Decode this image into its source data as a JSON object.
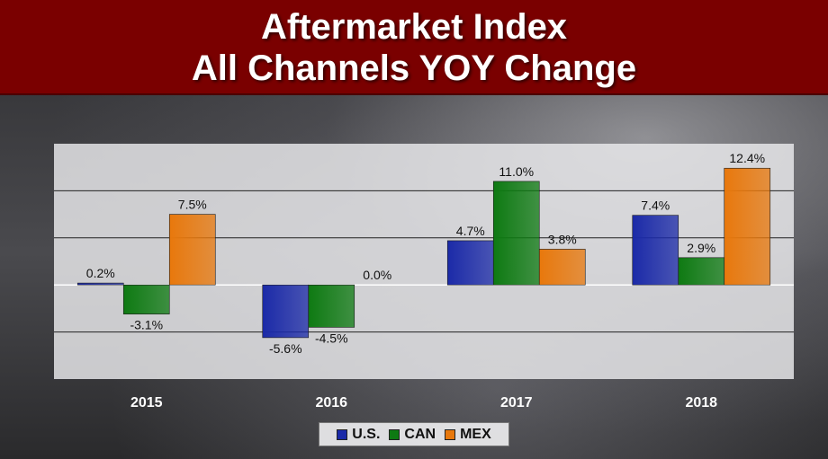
{
  "title": {
    "line1": "Aftermarket Index",
    "line2": "All Channels YOY Change"
  },
  "chart_data": {
    "type": "bar",
    "categories": [
      "2015",
      "2016",
      "2017",
      "2018"
    ],
    "series": [
      {
        "name": "U.S.",
        "color": "#1b2aa8",
        "values": [
          0.2,
          -5.6,
          4.7,
          7.4
        ],
        "labels": [
          "0.2%",
          "-5.6%",
          "4.7%",
          "7.4%"
        ]
      },
      {
        "name": "CAN",
        "color": "#0e7a12",
        "values": [
          -3.1,
          -4.5,
          11.0,
          2.9
        ],
        "labels": [
          "-3.1%",
          "-4.5%",
          "11.0%",
          "2.9%"
        ]
      },
      {
        "name": "MEX",
        "color": "#e8780c",
        "values": [
          7.5,
          0.0,
          3.8,
          12.4
        ],
        "labels": [
          "7.5%",
          "0.0%",
          "3.8%",
          "12.4%"
        ]
      }
    ],
    "ylim": [
      -10,
      15
    ],
    "gridlines": [
      -10,
      -5,
      0,
      5,
      10,
      15
    ],
    "grid": true,
    "legend_position": "bottom"
  }
}
